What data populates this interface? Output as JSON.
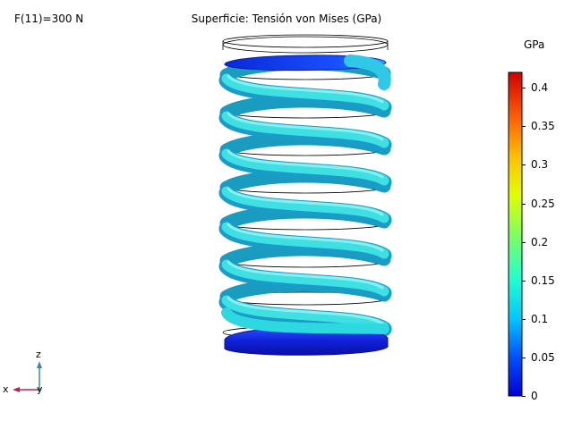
{
  "parameter_label": "F(11)=300 N",
  "plot_title": "Superficie: Tensión von Mises (GPa)",
  "colorbar": {
    "unit": "GPa",
    "min": 0,
    "max": 0.42,
    "ticks": [
      "0.4",
      "0.35",
      "0.3",
      "0.25",
      "0.2",
      "0.15",
      "0.1",
      "0.05",
      "0"
    ],
    "tick_values": [
      0.4,
      0.35,
      0.3,
      0.25,
      0.2,
      0.15,
      0.1,
      0.05,
      0
    ],
    "colors": [
      "#0000d8",
      "#0060ff",
      "#00d8ff",
      "#30ffc0",
      "#a0ff40",
      "#ffff00",
      "#ffa000",
      "#ff4000",
      "#d00000"
    ]
  },
  "axes_triad": {
    "x": "x",
    "y": "y",
    "z": "z"
  },
  "spring": {
    "turns": 8,
    "body_color": "#2ed8e0",
    "end_color": "#1530e8"
  }
}
